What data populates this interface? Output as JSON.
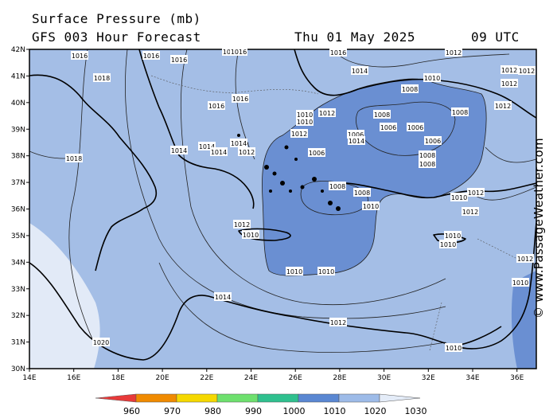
{
  "header": {
    "title": "Surface Pressure (mb)",
    "subtitle": "GFS 003 Hour Forecast",
    "date": "Thu 01 May 2025",
    "time": "09 UTC"
  },
  "copyright": "© www.PassageWeather.com",
  "map": {
    "lat_labels": [
      "42N",
      "41N",
      "40N",
      "39N",
      "38N",
      "37N",
      "36N",
      "35N",
      "34N",
      "33N",
      "32N",
      "31N",
      "30N"
    ],
    "lon_labels": [
      "14E",
      "16E",
      "18E",
      "20E",
      "22E",
      "24E",
      "26E",
      "28E",
      "30E",
      "32E",
      "34E",
      "36E"
    ],
    "isobar_labels": [
      "1016",
      "1016",
      "1016",
      "1016",
      "1016",
      "1012",
      "1016",
      "1018",
      "1014",
      "1010",
      "1018",
      "1008",
      "1012",
      "1012",
      "1016",
      "1010",
      "1010",
      "1012",
      "1008",
      "1012",
      "1008",
      "1006",
      "1006",
      "1006",
      "1006",
      "1014",
      "1014",
      "1014",
      "1014",
      "1012",
      "1008",
      "1008",
      "1016",
      "1006",
      "1014",
      "1008",
      "1008",
      "1010",
      "1012",
      "1010",
      "1012",
      "1012",
      "1010",
      "1010",
      "1010",
      "1010",
      "1010",
      "1012",
      "1010",
      "1012",
      "1010",
      "1014",
      "1020",
      "1012",
      "1012"
    ],
    "colors": {
      "water_1010": "#6a8fd2",
      "land_1010_1020": "#a4bee6",
      "high_1020": "#e2eaf7",
      "coast": "#000000",
      "isobar": "#222222"
    }
  },
  "legend": {
    "labels": [
      "960",
      "970",
      "980",
      "990",
      "1000",
      "1010",
      "1020",
      "1030"
    ],
    "colors": [
      "#e83a3a",
      "#f08a00",
      "#f5d800",
      "#6ee06e",
      "#2fc08e",
      "#5a87d2",
      "#9dbbe8",
      "#e4ecf8"
    ]
  }
}
